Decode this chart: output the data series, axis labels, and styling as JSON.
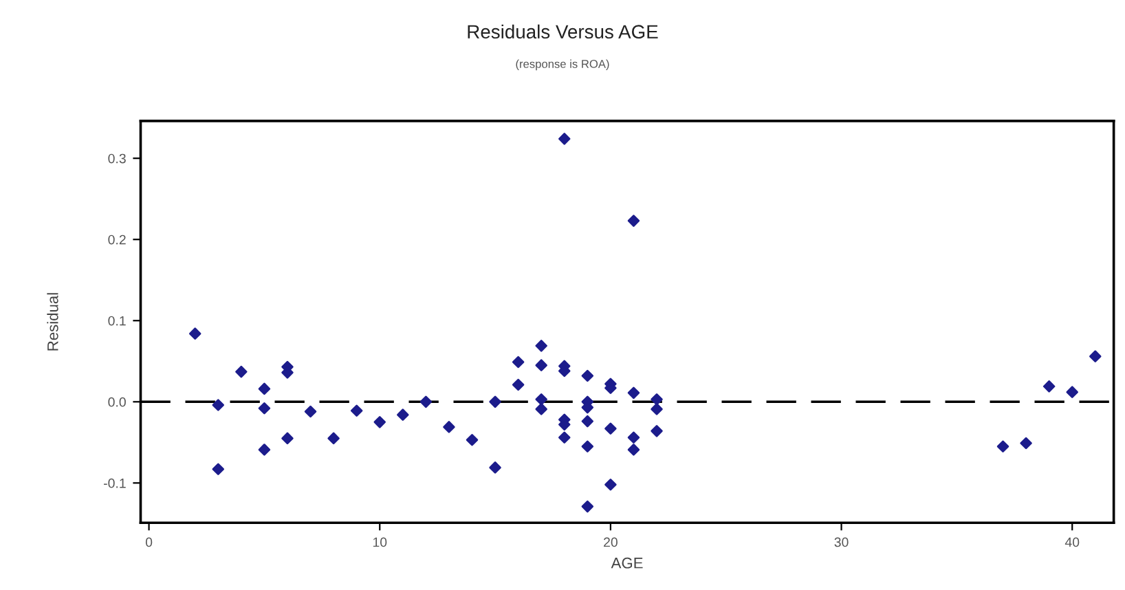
{
  "chart_data": {
    "type": "scatter",
    "title": "Residuals Versus AGE",
    "subtitle": "(response is ROA)",
    "xlabel": "AGE",
    "ylabel": "Residual",
    "x": [
      2,
      3,
      3,
      4,
      5,
      5,
      5,
      6,
      6,
      6,
      7,
      8,
      9,
      10,
      11,
      12,
      13,
      14,
      15,
      15,
      16,
      16,
      17,
      17,
      17,
      17,
      18,
      18,
      18,
      18,
      18,
      18,
      19,
      19,
      19,
      19,
      19,
      19,
      20,
      20,
      20,
      20,
      21,
      21,
      21,
      21,
      22,
      22,
      22,
      37,
      38,
      39,
      40,
      41
    ],
    "series": [
      {
        "color": "#1c1c8c",
        "values": [
          0.084,
          -0.004,
          -0.083,
          0.037,
          0.016,
          -0.008,
          -0.059,
          0.043,
          0.036,
          -0.045,
          -0.012,
          -0.045,
          -0.011,
          -0.025,
          -0.016,
          0.0,
          -0.031,
          -0.047,
          0.0,
          -0.081,
          0.049,
          0.021,
          0.069,
          0.045,
          0.003,
          -0.009,
          0.324,
          0.044,
          0.038,
          -0.022,
          -0.028,
          -0.044,
          0.032,
          0.0,
          -0.007,
          -0.024,
          -0.055,
          -0.129,
          0.022,
          0.017,
          -0.033,
          -0.102,
          0.223,
          0.011,
          -0.044,
          -0.059,
          0.003,
          -0.009,
          -0.036,
          -0.055,
          -0.051,
          0.019,
          0.012,
          0.056
        ]
      }
    ],
    "xlim": [
      -0.36,
      41.8
    ],
    "ylim": [
      -0.149,
      0.346
    ],
    "xticks": [
      0,
      10,
      20,
      30,
      40
    ],
    "yticks": [
      {
        "value": -0.1,
        "label": "-0.1"
      },
      {
        "value": 0.0,
        "label": "0.0"
      },
      {
        "value": 0.1,
        "label": "0.1"
      },
      {
        "value": 0.2,
        "label": "0.2"
      },
      {
        "value": 0.3,
        "label": "0.3"
      }
    ],
    "ref_lines": [
      {
        "axis": "y",
        "value": 0,
        "color": "#000000",
        "line_style": "dashed"
      }
    ],
    "marker": "diamond",
    "grid": false,
    "legend": false
  }
}
